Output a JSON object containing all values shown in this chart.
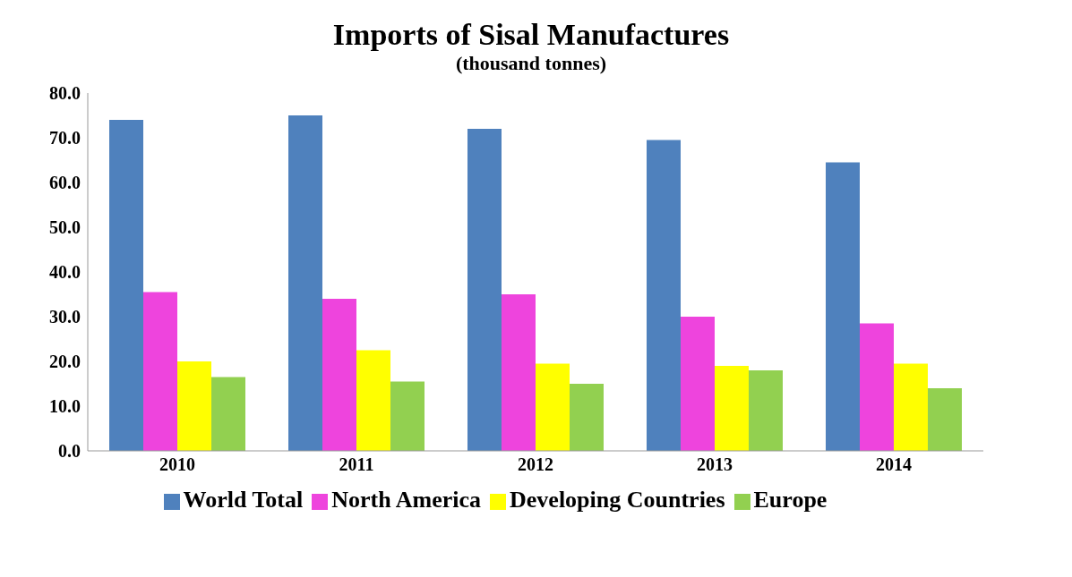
{
  "chart_data": {
    "type": "bar",
    "title": "Imports of Sisal Manufactures",
    "subtitle": "(thousand tonnes)",
    "categories": [
      "2010",
      "2011",
      "2012",
      "2013",
      "2014"
    ],
    "series": [
      {
        "name": "World Total",
        "color": "#4f81bd",
        "values": [
          74,
          75,
          72,
          69.5,
          64.5
        ]
      },
      {
        "name": "North America",
        "color": "#ee44dd",
        "values": [
          35.5,
          34,
          35,
          30,
          28.5
        ]
      },
      {
        "name": "Developing Countries",
        "color": "#ffff00",
        "values": [
          20,
          22.5,
          19.5,
          19,
          19.5
        ]
      },
      {
        "name": "Europe",
        "color": "#92d050",
        "values": [
          16.5,
          15.5,
          15,
          18,
          14
        ]
      }
    ],
    "ylim": [
      0,
      80
    ],
    "yticks": [
      {
        "value": 0,
        "label": "0.0"
      },
      {
        "value": 10,
        "label": "10.0"
      },
      {
        "value": 20,
        "label": "20.0"
      },
      {
        "value": 30,
        "label": "30.0"
      },
      {
        "value": 40,
        "label": "40.0"
      },
      {
        "value": 50,
        "label": "50.0"
      },
      {
        "value": 60,
        "label": "60.0"
      },
      {
        "value": 70,
        "label": "70.0"
      },
      {
        "value": 80,
        "label": "80.0"
      }
    ],
    "grid": false,
    "legend": "bottom"
  }
}
